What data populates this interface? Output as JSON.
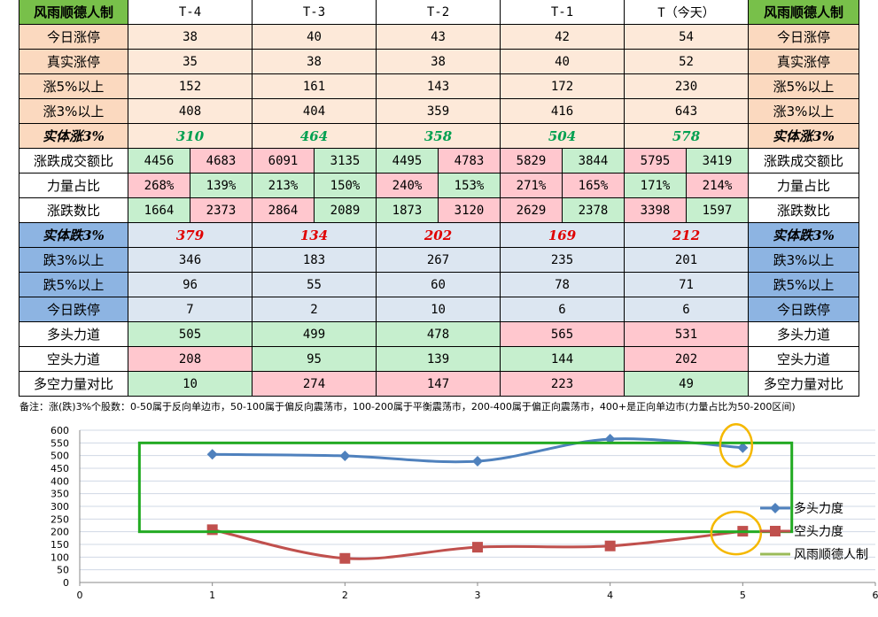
{
  "colors": {
    "green_header": "#78c04a",
    "peach": "#fbd9bf",
    "peach_light": "#fde9d9",
    "blue_label": "#8db4e2",
    "blue_light": "#dce6f1",
    "cell_green": "#c6efce",
    "cell_red": "#ffc7ce",
    "green_text": "#00a050",
    "red_text": "#e00000",
    "series_bull": "#4f81bd",
    "series_bear": "#c0504d",
    "series_brand": "#9bbb59",
    "box_green": "#22aa22",
    "circle_yellow": "#f5b800"
  },
  "table": {
    "corner_left": "风雨顺德人制",
    "corner_right": "风雨顺德人制",
    "columns": [
      "T-4",
      "T-3",
      "T-2",
      "T-1",
      "T（今天）"
    ],
    "rows": [
      {
        "label": "今日涨停",
        "kind": "single",
        "section": "up",
        "values": [
          "38",
          "40",
          "43",
          "42",
          "54"
        ]
      },
      {
        "label": "真实涨停",
        "kind": "single",
        "section": "up",
        "values": [
          "35",
          "38",
          "38",
          "40",
          "52"
        ]
      },
      {
        "label": "涨5%以上",
        "kind": "single",
        "section": "up",
        "values": [
          "152",
          "161",
          "143",
          "172",
          "230"
        ]
      },
      {
        "label": "涨3%以上",
        "kind": "single",
        "section": "up",
        "values": [
          "408",
          "404",
          "359",
          "416",
          "643"
        ]
      },
      {
        "label": "实体涨3%",
        "kind": "single",
        "section": "up_bold",
        "values": [
          "310",
          "464",
          "358",
          "504",
          "578"
        ]
      },
      {
        "label": "涨跌成交额比",
        "kind": "pair",
        "section": "plain",
        "values": [
          [
            "4456",
            "4683"
          ],
          [
            "6091",
            "3135"
          ],
          [
            "4495",
            "4783"
          ],
          [
            "5829",
            "3844"
          ],
          [
            "5795",
            "3419"
          ]
        ],
        "tones": [
          [
            "g",
            "r"
          ],
          [
            "r",
            "g"
          ],
          [
            "g",
            "r"
          ],
          [
            "r",
            "g"
          ],
          [
            "r",
            "g"
          ]
        ]
      },
      {
        "label": "力量占比",
        "kind": "pair",
        "section": "plain",
        "values": [
          [
            "268%",
            "139%"
          ],
          [
            "213%",
            "150%"
          ],
          [
            "240%",
            "153%"
          ],
          [
            "271%",
            "165%"
          ],
          [
            "171%",
            "214%"
          ]
        ],
        "tones": [
          [
            "r",
            "g"
          ],
          [
            "g",
            "g"
          ],
          [
            "r",
            "g"
          ],
          [
            "r",
            "r"
          ],
          [
            "g",
            "r"
          ]
        ]
      },
      {
        "label": "涨跌数比",
        "kind": "pair",
        "section": "plain",
        "values": [
          [
            "1664",
            "2373"
          ],
          [
            "2864",
            "2089"
          ],
          [
            "1873",
            "3120"
          ],
          [
            "2629",
            "2378"
          ],
          [
            "3398",
            "1597"
          ]
        ],
        "tones": [
          [
            "g",
            "r"
          ],
          [
            "r",
            "g"
          ],
          [
            "g",
            "r"
          ],
          [
            "r",
            "g"
          ],
          [
            "r",
            "g"
          ]
        ]
      },
      {
        "label": "实体跌3%",
        "kind": "single",
        "section": "down_bold",
        "values": [
          "379",
          "134",
          "202",
          "169",
          "212"
        ]
      },
      {
        "label": "跌3%以上",
        "kind": "single",
        "section": "down",
        "values": [
          "346",
          "183",
          "267",
          "235",
          "201"
        ]
      },
      {
        "label": "跌5%以上",
        "kind": "single",
        "section": "down",
        "values": [
          "96",
          "55",
          "60",
          "78",
          "71"
        ]
      },
      {
        "label": "今日跌停",
        "kind": "single",
        "section": "down",
        "values": [
          "7",
          "2",
          "10",
          "6",
          "6"
        ]
      },
      {
        "label": "多头力道",
        "kind": "single",
        "section": "power",
        "values": [
          "505",
          "499",
          "478",
          "565",
          "531"
        ],
        "tones": [
          "g",
          "g",
          "g",
          "r",
          "r"
        ]
      },
      {
        "label": "空头力道",
        "kind": "single",
        "section": "power",
        "values": [
          "208",
          "95",
          "139",
          "144",
          "202"
        ],
        "tones": [
          "r",
          "g",
          "g",
          "g",
          "r"
        ]
      },
      {
        "label": "多空力量对比",
        "kind": "single",
        "section": "power",
        "values": [
          "10",
          "274",
          "147",
          "223",
          "49"
        ],
        "tones": [
          "g",
          "r",
          "r",
          "r",
          "g"
        ]
      }
    ],
    "note": "备注：涨(跌)3%个股数：0-50属于反向单边市，50-100属于偏反向震荡市，100-200属于平衡震荡市，200-400属于偏正向震荡市，400+是正向单边市(力量占比为50-200区间)"
  },
  "chart_data": {
    "type": "line",
    "x_ticks": [
      "0",
      "1",
      "2",
      "3",
      "4",
      "5",
      "6"
    ],
    "y_ticks": [
      "0",
      "50",
      "100",
      "150",
      "200",
      "250",
      "300",
      "350",
      "400",
      "450",
      "500",
      "550",
      "600"
    ],
    "xlim": [
      0,
      6
    ],
    "ylim": [
      0,
      600
    ],
    "grid": true,
    "legend_position": "right",
    "series": [
      {
        "name": "多头力度",
        "x": [
          1,
          2,
          3,
          4,
          5
        ],
        "values": [
          505,
          499,
          478,
          565,
          531
        ],
        "marker": "diamond",
        "color_key": "series_bull"
      },
      {
        "name": "空头力度",
        "x": [
          1,
          2,
          3,
          4,
          5
        ],
        "values": [
          208,
          95,
          139,
          144,
          202
        ],
        "marker": "square",
        "color_key": "series_bear"
      },
      {
        "name": "风雨顺德人制",
        "x": [],
        "values": [],
        "marker": "none",
        "color_key": "series_brand"
      }
    ]
  }
}
